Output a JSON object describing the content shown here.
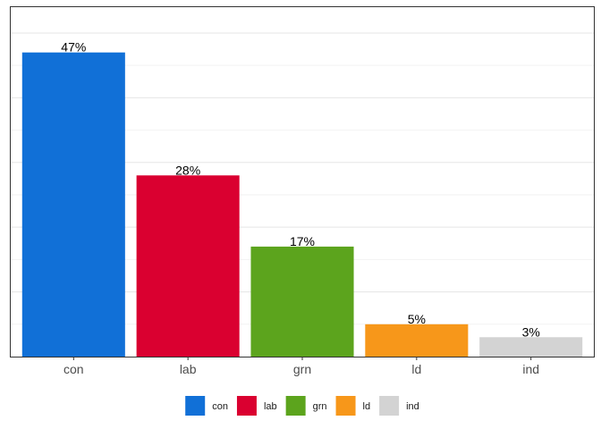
{
  "chart_data": {
    "type": "bar",
    "categories": [
      "con",
      "lab",
      "grn",
      "ld",
      "ind"
    ],
    "values": [
      47,
      28,
      17,
      5,
      3
    ],
    "data_labels": [
      "47%",
      "28%",
      "17%",
      "5%",
      "3%"
    ],
    "colors": [
      "#1170D7",
      "#DA0030",
      "#5CA41D",
      "#F7971A",
      "#D3D3D3"
    ],
    "ylim": [
      0,
      54
    ],
    "y_gridlines": [
      0,
      10,
      20,
      30,
      40,
      50
    ],
    "grid": true,
    "legend": {
      "position": "bottom",
      "entries": [
        "con",
        "lab",
        "grn",
        "ld",
        "ind"
      ]
    }
  }
}
